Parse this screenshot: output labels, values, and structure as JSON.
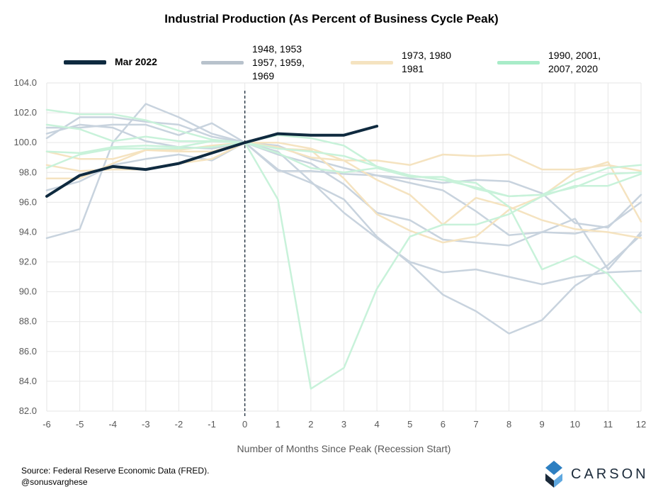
{
  "chart_data": {
    "type": "line",
    "title": "Industrial Production (As Percent of Business Cycle Peak)",
    "xlabel": "Number of Months Since Peak (Recession Start)",
    "ylabel": "",
    "xlim": [
      -6,
      12
    ],
    "ylim": [
      82,
      104
    ],
    "x_ticks": [
      "-6",
      "-5",
      "-4",
      "-3",
      "-2",
      "-1",
      "0",
      "1",
      "2",
      "3",
      "4",
      "5",
      "6",
      "7",
      "8",
      "9",
      "10",
      "11",
      "12"
    ],
    "y_ticks": [
      "82.0",
      "84.0",
      "86.0",
      "88.0",
      "90.0",
      "92.0",
      "94.0",
      "96.0",
      "98.0",
      "100.0",
      "102.0",
      "104.0"
    ],
    "grid": true,
    "vline_x": 0,
    "legend": [
      {
        "label": "Mar 2022",
        "color": "#0f2a3f"
      },
      {
        "label": "1948, 1953 1957, 1959, 1969",
        "color": "#b8c2cc"
      },
      {
        "label": "1973, 1980 1981",
        "color": "#f5e3c0"
      },
      {
        "label": "1990, 2001, 2007, 2020",
        "color": "#a8ecc8"
      }
    ],
    "series": [
      {
        "group": "Mar 2022",
        "color": "#0f2a3f",
        "width": 4,
        "x": [
          -6,
          -5,
          -4,
          -3,
          -2,
          -1,
          0,
          1,
          2,
          3,
          4
        ],
        "values": [
          96.4,
          97.8,
          98.4,
          98.2,
          98.6,
          99.3,
          100.0,
          100.6,
          100.5,
          100.5,
          101.1
        ]
      },
      {
        "group": "1948-1969",
        "color": "#c8d3de",
        "width": 2.5,
        "x": [
          -6,
          -5,
          -4,
          -3,
          -2,
          -1,
          0,
          1,
          2,
          3,
          4,
          5,
          6,
          7,
          8,
          9,
          10,
          11,
          12
        ],
        "values": [
          93.6,
          94.2,
          100.0,
          102.6,
          101.7,
          100.6,
          100.0,
          98.2,
          97.3,
          96.2,
          93.7,
          91.9,
          89.8,
          88.7,
          87.2,
          88.1,
          90.4,
          91.8,
          93.8
        ]
      },
      {
        "group": "1948-1969",
        "color": "#c8d3de",
        "width": 2.5,
        "x": [
          -6,
          -5,
          -4,
          -3,
          -2,
          -1,
          0,
          1,
          2,
          3,
          4,
          5,
          6,
          7,
          8,
          9,
          10,
          11,
          12
        ],
        "values": [
          100.3,
          101.7,
          101.7,
          101.4,
          101.2,
          100.4,
          100.0,
          99.4,
          97.4,
          95.3,
          93.6,
          92.0,
          91.3,
          91.5,
          91.0,
          90.5,
          91.0,
          91.3,
          91.4
        ]
      },
      {
        "group": "1948-1969",
        "color": "#c8d3de",
        "width": 2.5,
        "x": [
          -6,
          -5,
          -4,
          -3,
          -2,
          -1,
          0,
          1,
          2,
          3,
          4,
          5,
          6,
          7,
          8,
          9,
          10,
          11,
          12
        ],
        "values": [
          101.0,
          101.0,
          101.2,
          101.2,
          100.5,
          101.3,
          100.0,
          99.2,
          98.6,
          97.2,
          95.3,
          94.8,
          93.5,
          93.3,
          93.1,
          94.0,
          94.9,
          91.5,
          94.0
        ]
      },
      {
        "group": "1948-1969",
        "color": "#c8d3de",
        "width": 2.5,
        "x": [
          -6,
          -5,
          -4,
          -3,
          -2,
          -1,
          0,
          1,
          2,
          3,
          4,
          5,
          6,
          7,
          8,
          9,
          10,
          11,
          12
        ],
        "values": [
          96.8,
          97.4,
          98.5,
          98.9,
          99.2,
          98.8,
          100.0,
          98.1,
          98.1,
          97.9,
          97.8,
          97.6,
          97.3,
          97.5,
          97.4,
          96.6,
          94.6,
          94.3,
          96.5
        ]
      },
      {
        "group": "1948-1969",
        "color": "#c8d3de",
        "width": 2.5,
        "x": [
          -6,
          -5,
          -4,
          -3,
          -2,
          -1,
          0,
          1,
          2,
          3,
          4,
          5,
          6,
          7,
          8,
          9,
          10,
          11,
          12
        ],
        "values": [
          100.6,
          101.2,
          101.0,
          100.1,
          99.7,
          99.6,
          100.0,
          99.8,
          98.9,
          98.3,
          97.8,
          97.3,
          96.8,
          95.4,
          93.8,
          94.0,
          93.9,
          94.4,
          96.0
        ]
      },
      {
        "group": "1973-1981",
        "color": "#f5e3c0",
        "width": 2.5,
        "x": [
          -6,
          -5,
          -4,
          -3,
          -2,
          -1,
          0,
          1,
          2,
          3,
          4,
          5,
          6,
          7,
          8,
          9,
          10,
          11,
          12
        ],
        "values": [
          99.4,
          98.9,
          98.9,
          99.5,
          99.4,
          99.4,
          100.0,
          100.0,
          99.6,
          98.8,
          98.8,
          98.5,
          99.2,
          99.1,
          99.2,
          98.2,
          98.2,
          98.5,
          98.1
        ]
      },
      {
        "group": "1973-1981",
        "color": "#f5e3c0",
        "width": 2.5,
        "x": [
          -6,
          -5,
          -4,
          -3,
          -2,
          -1,
          0,
          1,
          2,
          3,
          4,
          5,
          6,
          7,
          8,
          9,
          10,
          11,
          12
        ],
        "values": [
          98.5,
          98.1,
          98.2,
          98.2,
          98.6,
          98.9,
          100.0,
          99.6,
          99.5,
          97.6,
          95.2,
          94.1,
          93.3,
          93.7,
          95.5,
          96.4,
          98.0,
          98.7,
          94.7
        ]
      },
      {
        "group": "1973-1981",
        "color": "#f5e3c0",
        "width": 2.5,
        "x": [
          -6,
          -5,
          -4,
          -3,
          -2,
          -1,
          0,
          1,
          2,
          3,
          4,
          5,
          6,
          7,
          8,
          9,
          10,
          11,
          12
        ],
        "values": [
          97.6,
          97.6,
          98.6,
          99.5,
          99.5,
          99.8,
          100.0,
          99.7,
          99.0,
          98.8,
          97.5,
          96.5,
          94.5,
          96.3,
          95.7,
          94.8,
          94.2,
          94.0,
          93.6
        ]
      },
      {
        "group": "1990-2020",
        "color": "#c8f2da",
        "width": 2.5,
        "x": [
          -6,
          -5,
          -4,
          -3,
          -2,
          -1,
          0,
          1,
          2,
          3,
          4,
          5,
          6,
          7,
          8,
          9,
          10,
          11,
          12
        ],
        "values": [
          99.4,
          99.3,
          99.7,
          99.8,
          99.7,
          100.1,
          100.0,
          99.3,
          98.3,
          98.0,
          98.3,
          97.7,
          97.7,
          96.9,
          96.4,
          96.5,
          97.5,
          98.3,
          98.5
        ]
      },
      {
        "group": "1990-2020",
        "color": "#c8f2da",
        "width": 2.5,
        "x": [
          -6,
          -5,
          -4,
          -3,
          -2,
          -1,
          0,
          1,
          2,
          3,
          4,
          5,
          6,
          7,
          8,
          9,
          10,
          11,
          12
        ],
        "values": [
          101.2,
          100.9,
          100.1,
          100.4,
          100.1,
          100.1,
          100.0,
          96.2,
          83.5,
          84.9,
          90.2,
          93.7,
          94.5,
          94.5,
          95.2,
          96.4,
          97.1,
          97.1,
          97.9
        ]
      },
      {
        "group": "1990-2020",
        "color": "#c8f2da",
        "width": 2.5,
        "x": [
          -6,
          -5,
          -4,
          -3,
          -2,
          -1,
          0,
          1,
          2,
          3,
          4,
          5,
          6,
          7,
          8,
          9,
          10,
          11,
          12
        ],
        "values": [
          102.2,
          101.9,
          101.9,
          101.5,
          100.8,
          100.2,
          100.0,
          100.5,
          100.3,
          99.8,
          98.4,
          97.8,
          97.5,
          97.3,
          95.7,
          91.5,
          92.4,
          91.2,
          88.6
        ]
      },
      {
        "group": "1990-2020",
        "color": "#c8f2da",
        "width": 2.5,
        "x": [
          -6,
          -5,
          -4,
          -3,
          -2,
          -1,
          0,
          1,
          2,
          3,
          4,
          5,
          6,
          7,
          8,
          9,
          10,
          11,
          12
        ],
        "values": [
          98.3,
          99.2,
          99.6,
          99.6,
          99.6,
          99.7,
          100.0,
          99.6,
          99.4,
          99.1,
          98.4,
          97.8,
          97.5,
          97.0,
          96.4,
          96.5,
          97.0,
          97.9,
          98.0
        ]
      }
    ],
    "source_text": "Source: Federal Reserve Economic Data (FRED).",
    "handle_text": "@sonusvarghese"
  },
  "logo": {
    "text": "CARSON",
    "color": "#1b2a3a",
    "accent": "#2d7fc1"
  }
}
